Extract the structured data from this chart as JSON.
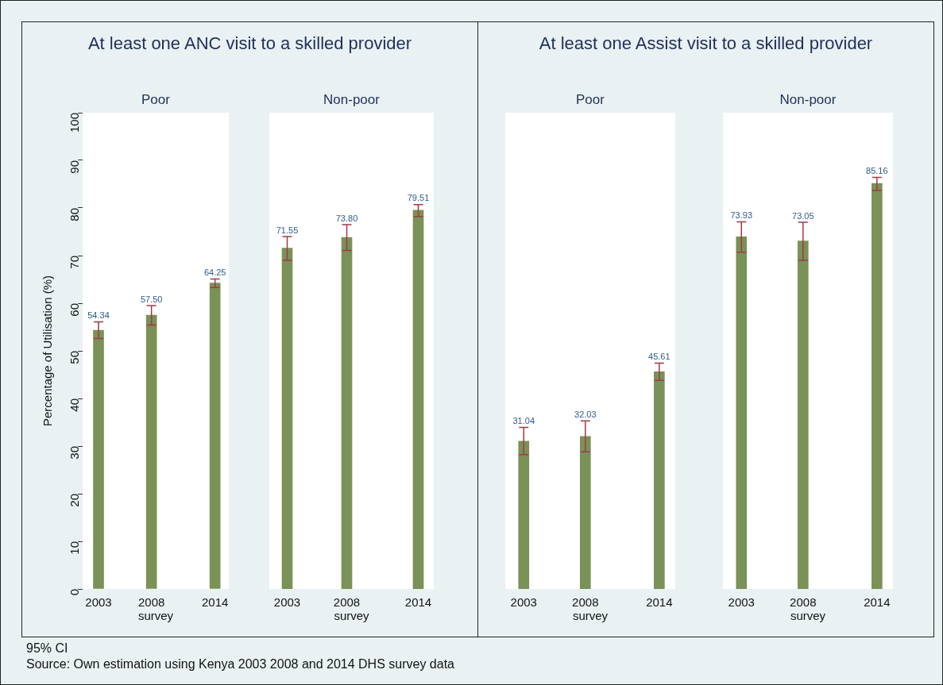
{
  "chart_data": [
    {
      "type": "bar",
      "title": "At least one ANC visit to a skilled provider",
      "subtitle": "Poor",
      "xlabel": "survey",
      "ylabel": "Percentage of Utilisation (%)",
      "x": [
        2003,
        2008,
        2014
      ],
      "values": [
        54.34,
        57.5,
        64.25
      ],
      "value_labels": [
        "54.34",
        "57.50",
        "64.25"
      ],
      "errors": [
        [
          52.6,
          56.1
        ],
        [
          55.4,
          59.5
        ],
        [
          63.3,
          65.1
        ]
      ],
      "color": "#7a9157",
      "xlim": [
        2001.5,
        2015.3
      ],
      "xticks": [
        2003,
        2008,
        2014
      ],
      "ylim": [
        0,
        100
      ],
      "yticks": [
        0,
        10,
        20,
        30,
        40,
        50,
        60,
        70,
        80,
        90,
        100
      ],
      "grid": false,
      "legend": false,
      "annotations": [
        "95% CI",
        "Source: Own estimation using Kenya 2003 2008 and 2014 DHS survey data"
      ]
    },
    {
      "type": "bar",
      "subtitle": "Non-poor",
      "xlabel": "survey",
      "x": [
        2003,
        2008,
        2014
      ],
      "values": [
        71.55,
        73.8,
        79.51
      ],
      "value_labels": [
        "71.55",
        "73.80",
        "79.51"
      ],
      "errors": [
        [
          69.0,
          74.0
        ],
        [
          71.1,
          76.5
        ],
        [
          78.2,
          80.7
        ]
      ],
      "color": "#7a9157",
      "xlim": [
        2001.5,
        2015.3
      ],
      "xticks": [
        2003,
        2008,
        2014
      ],
      "ylim": [
        0,
        100
      ],
      "grid": false,
      "legend": false,
      "tick_labels": "x"
    },
    {
      "type": "bar",
      "title": "At least one Assist visit to a skilled provider",
      "subtitle": "Poor",
      "xlabel": "survey",
      "x": [
        2003,
        2008,
        2014
      ],
      "values": [
        31.04,
        32.03,
        45.61
      ],
      "value_labels": [
        "31.04",
        "32.03",
        "45.61"
      ],
      "errors": [
        [
          28.2,
          33.9
        ],
        [
          28.8,
          35.3
        ],
        [
          43.8,
          47.4
        ]
      ],
      "color": "#7a9157",
      "xlim": [
        2001.5,
        2015.3
      ],
      "xticks": [
        2003,
        2008,
        2014
      ],
      "ylim": [
        0,
        100
      ],
      "grid": false,
      "legend": false,
      "tick_labels": "x"
    },
    {
      "type": "bar",
      "subtitle": "Non-poor",
      "xlabel": "survey",
      "x": [
        2003,
        2008,
        2014
      ],
      "values": [
        73.93,
        73.05,
        85.16
      ],
      "value_labels": [
        "73.93",
        "73.05",
        "85.16"
      ],
      "errors": [
        [
          70.7,
          77.1
        ],
        [
          69.0,
          77.0
        ],
        [
          83.7,
          86.4
        ]
      ],
      "color": "#7a9157",
      "xlim": [
        2001.5,
        2015.3
      ],
      "xticks": [
        2003,
        2008,
        2014
      ],
      "ylim": [
        0,
        100
      ],
      "grid": false,
      "legend": false,
      "tick_labels": "x"
    }
  ]
}
